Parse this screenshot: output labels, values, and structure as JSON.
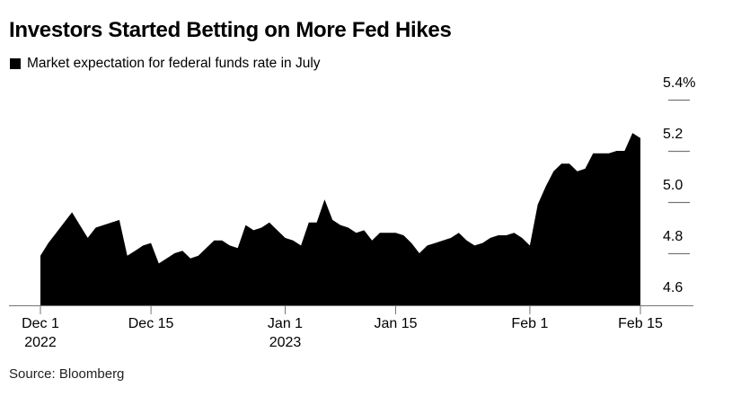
{
  "header": {
    "title": "Investors Started Betting on More Fed Hikes",
    "legend_label": "Market expectation for federal funds rate in July",
    "legend_marker_color": "#000000"
  },
  "footer": {
    "source": "Source: Bloomberg"
  },
  "colors": {
    "background": "#ffffff",
    "area_fill": "#000000",
    "axis_line": "#767676",
    "text": "#000000"
  },
  "chart_data": {
    "type": "area",
    "title": "Investors Started Betting on More Fed Hikes",
    "unit": "%",
    "ylim": [
      4.6,
      5.4
    ],
    "grid": "right-side tick dashes only",
    "legend_position": "top-left",
    "fill_color": "#000000",
    "x": [
      "Dec 1",
      "Dec 2",
      "Dec 3",
      "Dec 4",
      "Dec 5",
      "Dec 6",
      "Dec 7",
      "Dec 8",
      "Dec 9",
      "Dec 10",
      "Dec 11",
      "Dec 12",
      "Dec 13",
      "Dec 14",
      "Dec 15",
      "Dec 16",
      "Dec 17",
      "Dec 18",
      "Dec 19",
      "Dec 20",
      "Dec 21",
      "Dec 22",
      "Dec 23",
      "Dec 24",
      "Dec 25",
      "Dec 26",
      "Dec 27",
      "Dec 28",
      "Dec 29",
      "Dec 30",
      "Dec 31",
      "Jan 1",
      "Jan 2",
      "Jan 3",
      "Jan 4",
      "Jan 5",
      "Jan 6",
      "Jan 7",
      "Jan 8",
      "Jan 9",
      "Jan 10",
      "Jan 11",
      "Jan 12",
      "Jan 13",
      "Jan 14",
      "Jan 15",
      "Jan 16",
      "Jan 17",
      "Jan 18",
      "Jan 19",
      "Jan 20",
      "Jan 21",
      "Jan 22",
      "Jan 23",
      "Jan 24",
      "Jan 25",
      "Jan 26",
      "Jan 27",
      "Jan 28",
      "Jan 29",
      "Jan 30",
      "Jan 31",
      "Feb 1",
      "Feb 2",
      "Feb 3",
      "Feb 4",
      "Feb 5",
      "Feb 6",
      "Feb 7",
      "Feb 8",
      "Feb 9",
      "Feb 10",
      "Feb 11",
      "Feb 12",
      "Feb 13",
      "Feb 14",
      "Feb 15"
    ],
    "series": [
      {
        "name": "Market expectation for federal funds rate in July",
        "values": [
          4.79,
          4.84,
          4.88,
          4.92,
          4.96,
          4.91,
          4.86,
          4.9,
          4.91,
          4.92,
          4.93,
          4.79,
          4.81,
          4.83,
          4.84,
          4.76,
          4.78,
          4.8,
          4.81,
          4.78,
          4.79,
          4.82,
          4.85,
          4.85,
          4.83,
          4.82,
          4.91,
          4.89,
          4.9,
          4.92,
          4.89,
          4.86,
          4.85,
          4.83,
          4.92,
          4.92,
          5.01,
          4.93,
          4.91,
          4.9,
          4.88,
          4.89,
          4.85,
          4.88,
          4.88,
          4.88,
          4.87,
          4.84,
          4.8,
          4.83,
          4.84,
          4.85,
          4.86,
          4.88,
          4.85,
          4.83,
          4.84,
          4.86,
          4.87,
          4.87,
          4.88,
          4.86,
          4.83,
          4.99,
          5.06,
          5.12,
          5.15,
          5.15,
          5.12,
          5.13,
          5.19,
          5.19,
          5.19,
          5.2,
          5.2,
          5.27,
          5.25
        ]
      }
    ],
    "x_ticks": [
      {
        "label": "Dec 1",
        "sublabel": "2022",
        "index": 0
      },
      {
        "label": "Dec 15",
        "sublabel": "",
        "index": 14
      },
      {
        "label": "Jan 1",
        "sublabel": "2023",
        "index": 31
      },
      {
        "label": "Jan 15",
        "sublabel": "",
        "index": 45
      },
      {
        "label": "Feb 1",
        "sublabel": "",
        "index": 62
      },
      {
        "label": "Feb 15",
        "sublabel": "",
        "index": 76
      }
    ],
    "y_ticks": [
      {
        "label": "5.4%",
        "value": 5.4
      },
      {
        "label": "5.2",
        "value": 5.2
      },
      {
        "label": "5.0",
        "value": 5.0
      },
      {
        "label": "4.8",
        "value": 4.8
      },
      {
        "label": "4.6",
        "value": 4.6
      }
    ]
  }
}
